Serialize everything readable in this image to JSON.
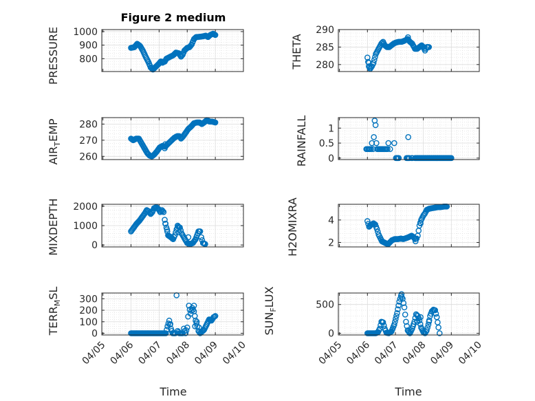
{
  "chart_data": [
    {
      "id": "pressure",
      "type": "scatter",
      "title": "Figure 2 medium",
      "ylabel": "PRESSURE",
      "ylim": [
        705,
        1015
      ],
      "yticks": [
        800,
        900,
        1000
      ],
      "ytick_labels": [
        "800",
        "900",
        "1000"
      ],
      "xlim": [
        "04/05",
        "04/10"
      ],
      "xticks": [
        "04/05",
        "04/06",
        "04/07",
        "04/08",
        "04/09",
        "04/10"
      ],
      "grid": true,
      "keys": [
        [
          0.0,
          880
        ],
        [
          0.12,
          885
        ],
        [
          0.22,
          910
        ],
        [
          0.32,
          895
        ],
        [
          0.42,
          860
        ],
        [
          0.52,
          815
        ],
        [
          0.62,
          775
        ],
        [
          0.7,
          735
        ],
        [
          0.78,
          720
        ],
        [
          0.88,
          740
        ],
        [
          0.98,
          760
        ],
        [
          1.06,
          780
        ],
        [
          1.12,
          775
        ],
        [
          1.2,
          778
        ],
        [
          1.26,
          800
        ],
        [
          1.4,
          815
        ],
        [
          1.5,
          825
        ],
        [
          1.6,
          845
        ],
        [
          1.7,
          840
        ],
        [
          1.78,
          815
        ],
        [
          1.84,
          830
        ],
        [
          1.9,
          860
        ],
        [
          2.0,
          880
        ],
        [
          2.08,
          885
        ],
        [
          2.16,
          905
        ],
        [
          2.24,
          945
        ],
        [
          2.32,
          960
        ],
        [
          2.44,
          962
        ],
        [
          2.56,
          965
        ],
        [
          2.66,
          970
        ],
        [
          2.74,
          960
        ],
        [
          2.82,
          975
        ],
        [
          2.92,
          985
        ],
        [
          3.0,
          975
        ]
      ],
      "extras": [
        [
          1.12,
          770
        ]
      ]
    },
    {
      "id": "theta",
      "type": "scatter",
      "ylabel": "THETA",
      "ylim": [
        278,
        290
      ],
      "yticks": [
        280,
        285,
        290
      ],
      "ytick_labels": [
        "280",
        "285",
        "290"
      ],
      "xlim": [
        "04/05",
        "04/10"
      ],
      "xticks": [
        "04/05",
        "04/06",
        "04/07",
        "04/08",
        "04/09",
        "04/10"
      ],
      "grid": true,
      "keys": [
        [
          0.0,
          282
        ],
        [
          0.05,
          279.5
        ],
        [
          0.1,
          278.8
        ],
        [
          0.16,
          279.5
        ],
        [
          0.22,
          280.5
        ],
        [
          0.3,
          283
        ],
        [
          0.4,
          284.5
        ],
        [
          0.5,
          286
        ],
        [
          0.56,
          286.5
        ],
        [
          0.62,
          285.5
        ],
        [
          0.7,
          285
        ],
        [
          0.78,
          285
        ],
        [
          0.86,
          285.5
        ],
        [
          0.94,
          286.0
        ],
        [
          1.02,
          286.3
        ],
        [
          1.12,
          286.5
        ],
        [
          1.22,
          286.5
        ],
        [
          1.32,
          286.8
        ],
        [
          1.44,
          287.3
        ],
        [
          1.52,
          286.5
        ],
        [
          1.6,
          286.0
        ],
        [
          1.7,
          284.5
        ],
        [
          1.78,
          284.5
        ],
        [
          1.86,
          285.0
        ],
        [
          1.94,
          285.5
        ],
        [
          2.0,
          285.0
        ],
        [
          2.06,
          284.0
        ],
        [
          2.12,
          285.0
        ],
        [
          2.2,
          285.0
        ]
      ],
      "extras": [
        [
          1.45,
          287.8
        ],
        [
          0.05,
          280.5
        ]
      ]
    },
    {
      "id": "air_temp",
      "type": "scatter",
      "ylabel": "AIR_TEMP",
      "ylim": [
        258,
        284
      ],
      "yticks": [
        260,
        270,
        280
      ],
      "ytick_labels": [
        "260",
        "270",
        "280"
      ],
      "xlim": [
        "04/05",
        "04/10"
      ],
      "xticks": [
        "04/05",
        "04/06",
        "04/07",
        "04/08",
        "04/09",
        "04/10"
      ],
      "grid": true,
      "keys": [
        [
          0.0,
          271
        ],
        [
          0.08,
          270
        ],
        [
          0.18,
          271
        ],
        [
          0.28,
          271
        ],
        [
          0.38,
          268
        ],
        [
          0.48,
          265
        ],
        [
          0.58,
          262
        ],
        [
          0.66,
          260.5
        ],
        [
          0.74,
          260
        ],
        [
          0.82,
          261
        ],
        [
          0.92,
          263
        ],
        [
          1.02,
          265.5
        ],
        [
          1.12,
          266.5
        ],
        [
          1.22,
          266
        ],
        [
          1.3,
          267.5
        ],
        [
          1.42,
          269.5
        ],
        [
          1.54,
          271.5
        ],
        [
          1.64,
          272.5
        ],
        [
          1.72,
          272.5
        ],
        [
          1.78,
          271
        ],
        [
          1.86,
          272.5
        ],
        [
          1.96,
          275
        ],
        [
          2.04,
          277
        ],
        [
          2.14,
          278.5
        ],
        [
          2.24,
          280.5
        ],
        [
          2.34,
          281
        ],
        [
          2.44,
          281
        ],
        [
          2.52,
          280
        ],
        [
          2.6,
          281
        ],
        [
          2.7,
          282.5
        ],
        [
          2.8,
          281.5
        ],
        [
          2.9,
          281.5
        ],
        [
          3.0,
          281
        ]
      ],
      "extras": [
        [
          1.2,
          265
        ],
        [
          1.22,
          267.5
        ]
      ]
    },
    {
      "id": "rainfall",
      "type": "scatter",
      "ylabel": "RAINFALL",
      "ylim": [
        -0.05,
        1.35
      ],
      "yticks": [
        0,
        0.5,
        1
      ],
      "ytick_labels": [
        "0",
        "0.5",
        "1"
      ],
      "xlim": [
        "04/05",
        "04/10"
      ],
      "xticks": [
        "04/05",
        "04/06",
        "04/07",
        "04/08",
        "04/09",
        "04/10"
      ],
      "grid": true,
      "rain_points": [
        [
          1.0,
          0.3
        ],
        [
          1.03,
          0.3
        ],
        [
          1.07,
          0.3
        ],
        [
          1.1,
          0.3
        ],
        [
          1.13,
          0.3
        ],
        [
          1.17,
          0.3
        ],
        [
          1.2,
          0.5
        ],
        [
          1.24,
          0.3
        ],
        [
          1.27,
          0.7
        ],
        [
          1.3,
          1.25
        ],
        [
          1.33,
          1.1
        ],
        [
          1.36,
          0.5
        ],
        [
          1.39,
          0.3
        ],
        [
          1.42,
          0.3
        ],
        [
          1.46,
          0.3
        ],
        [
          1.49,
          0.3
        ],
        [
          1.52,
          0.3
        ],
        [
          1.55,
          0.3
        ],
        [
          1.58,
          0.3
        ],
        [
          1.61,
          0.3
        ],
        [
          1.65,
          0.3
        ],
        [
          1.69,
          0.3
        ],
        [
          1.72,
          0.3
        ],
        [
          1.76,
          0.3
        ],
        [
          1.79,
          0.5
        ],
        [
          1.85,
          0.3
        ],
        [
          2.0,
          0.5
        ],
        [
          2.5,
          0.7
        ]
      ],
      "zero_segments": [
        [
          1.02,
          1.12
        ],
        [
          1.4,
          1.5
        ],
        [
          1.58,
          1.62
        ],
        [
          1.7,
          5.0
        ]
      ]
    },
    {
      "id": "mixdepth",
      "type": "scatter",
      "ylabel": "MIXDEPTH",
      "ylim": [
        -100,
        2100
      ],
      "yticks": [
        0,
        1000,
        2000
      ],
      "ytick_labels": [
        "0",
        "1000",
        "2000"
      ],
      "xlim": [
        "04/05",
        "04/10"
      ],
      "xticks": [
        "04/05",
        "04/06",
        "04/07",
        "04/08",
        "04/09",
        "04/10"
      ],
      "grid": true,
      "keys": [
        [
          0.0,
          700
        ],
        [
          0.1,
          900
        ],
        [
          0.2,
          1100
        ],
        [
          0.3,
          1250
        ],
        [
          0.4,
          1450
        ],
        [
          0.5,
          1650
        ],
        [
          0.56,
          1800
        ],
        [
          0.62,
          1750
        ],
        [
          0.7,
          1600
        ],
        [
          0.76,
          1700
        ],
        [
          0.82,
          1900
        ],
        [
          0.9,
          1950
        ],
        [
          0.98,
          1850
        ],
        [
          1.04,
          1700
        ],
        [
          1.1,
          1800
        ],
        [
          1.16,
          1700
        ],
        [
          1.2,
          1300
        ],
        [
          1.26,
          900
        ],
        [
          1.32,
          500
        ],
        [
          1.42,
          400
        ],
        [
          1.5,
          300
        ],
        [
          1.56,
          500
        ],
        [
          1.62,
          800
        ],
        [
          1.68,
          950
        ],
        [
          1.74,
          900
        ],
        [
          1.8,
          600
        ],
        [
          1.86,
          450
        ],
        [
          1.92,
          300
        ],
        [
          2.0,
          100
        ],
        [
          2.1,
          50
        ],
        [
          2.2,
          100
        ],
        [
          2.3,
          300
        ],
        [
          2.4,
          700
        ],
        [
          2.46,
          700
        ],
        [
          2.5,
          400
        ],
        [
          2.56,
          100
        ],
        [
          2.64,
          50
        ]
      ],
      "extras": [
        [
          1.22,
          1100
        ],
        [
          1.28,
          800
        ],
        [
          1.66,
          1000
        ],
        [
          1.7,
          650
        ],
        [
          2.04,
          400
        ]
      ]
    },
    {
      "id": "h2omixra",
      "type": "scatter",
      "ylabel": "H2OMIXRA",
      "ylim": [
        1.6,
        5.4
      ],
      "yticks": [
        2,
        4
      ],
      "ytick_labels": [
        "2",
        "4"
      ],
      "xlim": [
        "04/05",
        "04/10"
      ],
      "xticks": [
        "04/05",
        "04/06",
        "04/07",
        "04/08",
        "04/09",
        "04/10"
      ],
      "grid": true,
      "keys": [
        [
          0.0,
          3.9
        ],
        [
          0.06,
          3.4
        ],
        [
          0.14,
          3.6
        ],
        [
          0.22,
          3.7
        ],
        [
          0.28,
          3.6
        ],
        [
          0.34,
          3.2
        ],
        [
          0.4,
          2.7
        ],
        [
          0.46,
          2.4
        ],
        [
          0.52,
          2.1
        ],
        [
          0.6,
          2.0
        ],
        [
          0.68,
          1.9
        ],
        [
          0.74,
          1.85
        ],
        [
          0.8,
          2.0
        ],
        [
          0.88,
          2.2
        ],
        [
          0.98,
          2.3
        ],
        [
          1.1,
          2.3
        ],
        [
          1.2,
          2.35
        ],
        [
          1.28,
          2.3
        ],
        [
          1.4,
          2.4
        ],
        [
          1.5,
          2.5
        ],
        [
          1.58,
          2.6
        ],
        [
          1.64,
          2.5
        ],
        [
          1.7,
          2.3
        ],
        [
          1.76,
          2.35
        ],
        [
          1.8,
          2.6
        ],
        [
          1.86,
          3.5
        ],
        [
          1.92,
          4.0
        ],
        [
          2.0,
          4.4
        ],
        [
          2.06,
          4.6
        ],
        [
          2.12,
          4.9
        ],
        [
          2.2,
          5.0
        ],
        [
          2.3,
          5.05
        ],
        [
          2.42,
          5.1
        ],
        [
          2.52,
          5.15
        ],
        [
          2.62,
          5.15
        ],
        [
          2.74,
          5.2
        ],
        [
          2.84,
          5.2
        ]
      ],
      "extras": [
        [
          1.72,
          2.1
        ],
        [
          1.9,
          3.7
        ]
      ]
    },
    {
      "id": "terr_msl",
      "type": "scatter",
      "ylabel": "TERR_MSL",
      "ylim": [
        -15,
        350
      ],
      "yticks": [
        0,
        100,
        200,
        300
      ],
      "ytick_labels": [
        "0",
        "100",
        "200",
        "300"
      ],
      "xlim": [
        "04/05",
        "04/10"
      ],
      "xticks": [
        "04/05",
        "04/06",
        "04/07",
        "04/08",
        "04/09",
        "04/10"
      ],
      "grid": true,
      "keys": [
        [
          0.0,
          0
        ],
        [
          1.24,
          0
        ],
        [
          1.3,
          60
        ],
        [
          1.36,
          110
        ],
        [
          1.42,
          40
        ],
        [
          1.48,
          0
        ],
        [
          1.58,
          0
        ],
        [
          1.62,
          330
        ],
        [
          1.66,
          20
        ],
        [
          1.72,
          0
        ],
        [
          1.84,
          0
        ],
        [
          1.88,
          40
        ],
        [
          1.94,
          0
        ],
        [
          2.0,
          50
        ],
        [
          2.06,
          240
        ],
        [
          2.12,
          170
        ],
        [
          2.18,
          220
        ],
        [
          2.24,
          190
        ],
        [
          2.3,
          110
        ],
        [
          2.36,
          60
        ],
        [
          2.4,
          20
        ],
        [
          2.46,
          0
        ],
        [
          2.6,
          30
        ],
        [
          2.7,
          80
        ],
        [
          2.78,
          120
        ],
        [
          2.86,
          110
        ],
        [
          2.94,
          140
        ],
        [
          3.0,
          150
        ]
      ],
      "extras": [
        [
          2.24,
          240
        ],
        [
          2.28,
          60
        ],
        [
          2.34,
          100
        ],
        [
          2.42,
          50
        ],
        [
          1.4,
          80
        ]
      ]
    },
    {
      "id": "sun_flux",
      "type": "scatter",
      "ylabel": "SUN_FLUX",
      "ylim": [
        -30,
        700
      ],
      "yticks": [
        0,
        500
      ],
      "ytick_labels": [
        "0",
        "500"
      ],
      "xlim": [
        "04/05",
        "04/10"
      ],
      "xticks": [
        "04/05",
        "04/06",
        "04/07",
        "04/08",
        "04/09",
        "04/10"
      ],
      "grid": true,
      "keys": [
        [
          0.0,
          0
        ],
        [
          0.3,
          0
        ],
        [
          0.38,
          20
        ],
        [
          0.44,
          80
        ],
        [
          0.5,
          200
        ],
        [
          0.56,
          190
        ],
        [
          0.62,
          80
        ],
        [
          0.68,
          10
        ],
        [
          0.76,
          0
        ],
        [
          0.86,
          30
        ],
        [
          0.96,
          150
        ],
        [
          1.06,
          350
        ],
        [
          1.14,
          550
        ],
        [
          1.2,
          650
        ],
        [
          1.26,
          600
        ],
        [
          1.32,
          450
        ],
        [
          1.38,
          200
        ],
        [
          1.44,
          50
        ],
        [
          1.52,
          0
        ],
        [
          1.6,
          80
        ],
        [
          1.68,
          200
        ],
        [
          1.74,
          330
        ],
        [
          1.8,
          300
        ],
        [
          1.86,
          220
        ],
        [
          1.92,
          100
        ],
        [
          2.0,
          20
        ],
        [
          2.06,
          0
        ],
        [
          2.12,
          50
        ],
        [
          2.18,
          150
        ],
        [
          2.24,
          300
        ],
        [
          2.3,
          380
        ],
        [
          2.36,
          410
        ],
        [
          2.42,
          400
        ],
        [
          2.48,
          280
        ],
        [
          2.54,
          100
        ],
        [
          2.58,
          0
        ]
      ],
      "extras": [
        [
          1.22,
          680
        ],
        [
          1.78,
          200
        ],
        [
          1.84,
          260
        ],
        [
          1.9,
          280
        ],
        [
          2.2,
          200
        ]
      ]
    }
  ],
  "labels": {
    "title": "Figure 2 medium",
    "xlabel_left": "Time",
    "xlabel_right": "Time",
    "ylabels": {
      "pressure": "PRESSURE",
      "theta": "THETA",
      "air_temp": {
        "before": "AIR",
        "sub": "T",
        "after": "EMP"
      },
      "rainfall": "RAINFALL",
      "mixdepth": "MIXDEPTH",
      "h2omixra": "H2OMIXRA",
      "terr_msl": {
        "before": "TERR",
        "sub": "M",
        "after": "SL"
      },
      "sun_flux": {
        "before": "SUN",
        "sub": "F",
        "after": "LUX"
      }
    }
  },
  "colors": {
    "marker": "#0072BD",
    "grid": "#dcdcdc",
    "axis": "#262626",
    "background": "#ffffff"
  }
}
